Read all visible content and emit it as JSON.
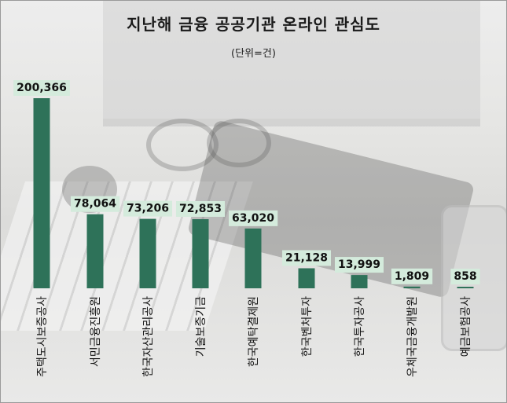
{
  "header": {
    "title": "지난해 금융 공공기관 온라인 관심도",
    "unit": "(단위=건)"
  },
  "chart_data": {
    "type": "bar",
    "title": "지난해 금융 공공기관 온라인 관심도",
    "subtitle": "(단위=건)",
    "categories": [
      "주택도시보증공사",
      "서민금융진흥원",
      "한국자산관리공사",
      "기술보증기금",
      "한국예탁결제원",
      "한국벤처투자",
      "한국투자공사",
      "우체국금융개발원",
      "예금보험공사"
    ],
    "values": [
      200366,
      78064,
      73206,
      72853,
      63020,
      21128,
      13999,
      1809,
      858
    ],
    "value_labels": [
      "200,366",
      "78,064",
      "73,206",
      "72,853",
      "63,020",
      "21,128",
      "13,999",
      "1,809",
      "858"
    ],
    "ylim": [
      0,
      200366
    ],
    "grid": false,
    "bar_color": "#2e7259",
    "label_bg": "#d4ebdc"
  }
}
